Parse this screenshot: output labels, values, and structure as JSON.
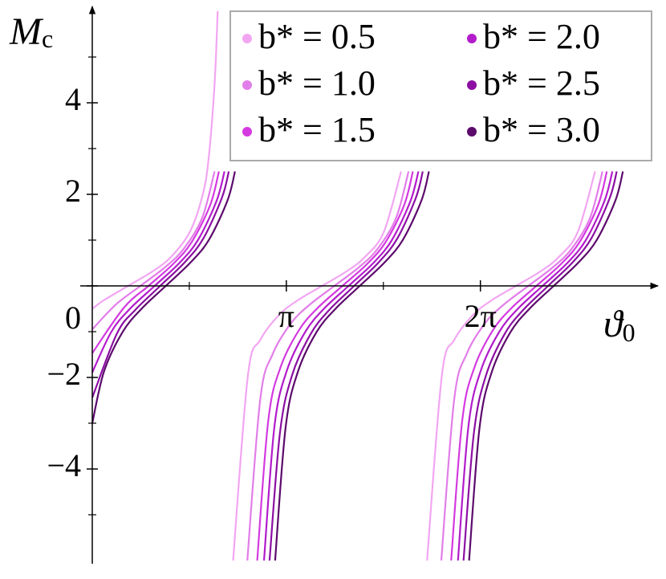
{
  "chart_data": {
    "type": "line",
    "xlabel": {
      "main": "ϑ",
      "sub": "0"
    },
    "ylabel": {
      "main": "M",
      "sub": "c"
    },
    "xlim": [
      0,
      9.08
    ],
    "ylim": [
      -6,
      6
    ],
    "xticks": [
      {
        "value": 3.14159,
        "label": "π"
      },
      {
        "value": 6.28319,
        "label": "2π"
      }
    ],
    "xminor": [
      1.5708,
      4.7124
    ],
    "yticks": [
      {
        "value": -4,
        "label": "−4"
      },
      {
        "value": -2,
        "label": "−2"
      },
      0,
      2,
      4
    ],
    "yminor": [
      -5,
      -3,
      -1,
      1,
      3,
      5
    ],
    "legend": "upper right",
    "series": [
      {
        "name": "b* = 0.5",
        "color": "#f2a6f2",
        "x": [
          0,
          0.18,
          0.58,
          0.98,
          1.28,
          1.58,
          1.78,
          1.88,
          1.98,
          2.03,
          2.15,
          2.28,
          2.52,
          2.72,
          3.02,
          3.32,
          3.72,
          4.12,
          4.42,
          4.72,
          5.0,
          5.29,
          5.42,
          5.66,
          5.86,
          6.16,
          6.46,
          6.86,
          7.26,
          7.56,
          7.86,
          8.14
        ],
        "values": [
          -0.5,
          -0.32,
          0,
          0.32,
          0.64,
          1.18,
          1.95,
          2.74,
          4.41,
          6,
          null,
          -6,
          -1.95,
          -1.18,
          -0.64,
          -0.32,
          0,
          0.32,
          0.64,
          1.18,
          2.5,
          null,
          -6,
          -1.95,
          -1.18,
          -0.64,
          -0.32,
          0,
          0.32,
          0.64,
          1.18,
          2.5
        ]
      },
      {
        "name": "b* = 1.0",
        "color": "#e27ee9",
        "x": [
          0,
          0.38,
          0.78,
          1.18,
          1.48,
          1.78,
          1.98,
          2.35,
          2.51,
          2.72,
          2.92,
          3.22,
          3.52,
          3.92,
          4.32,
          4.62,
          4.92,
          5.12,
          5.49,
          5.65,
          5.86,
          6.06,
          6.36,
          6.66,
          7.06,
          7.46,
          7.76,
          8.06,
          8.26
        ],
        "values": [
          -0.95,
          -0.41,
          0,
          0.41,
          0.81,
          1.49,
          2.5,
          null,
          -6,
          -2.47,
          -1.49,
          -0.81,
          -0.41,
          0,
          0.41,
          0.81,
          1.49,
          2.5,
          null,
          -6,
          -2.47,
          -1.49,
          -0.81,
          -0.41,
          0,
          0.41,
          0.81,
          1.49,
          2.5
        ]
      },
      {
        "name": "b* = 1.5",
        "color": "#d43ae0",
        "x": [
          0,
          0.51,
          0.91,
          1.31,
          1.61,
          1.91,
          2.05,
          2.48,
          2.67,
          2.85,
          3.05,
          3.35,
          3.65,
          4.05,
          4.45,
          4.75,
          5.05,
          5.19,
          5.62,
          5.81,
          5.99,
          6.19,
          6.49,
          6.79,
          7.19,
          7.59,
          7.89,
          8.19,
          8.33
        ],
        "values": [
          -1.47,
          -0.48,
          0,
          0.48,
          0.96,
          1.77,
          2.5,
          null,
          -6,
          -2.93,
          -1.77,
          -0.96,
          -0.48,
          0,
          0.48,
          0.96,
          1.77,
          2.5,
          null,
          -6,
          -2.93,
          -1.77,
          -0.96,
          -0.48,
          0,
          0.48,
          0.96,
          1.77,
          2.5
        ]
      },
      {
        "name": "b* = 2.0",
        "color": "#b21ccb",
        "x": [
          0,
          0.31,
          0.61,
          1.01,
          1.41,
          1.71,
          2.01,
          2.14,
          2.58,
          2.78,
          2.95,
          3.15,
          3.45,
          3.75,
          4.15,
          4.55,
          4.85,
          5.15,
          5.28,
          5.72,
          5.92,
          6.09,
          6.29,
          6.59,
          6.89,
          7.29,
          7.69,
          7.99,
          8.29,
          8.42
        ],
        "values": [
          -1.89,
          -1.0,
          -0.5,
          0,
          0.5,
          1.0,
          1.85,
          2.5,
          null,
          -6,
          -3.06,
          -1.85,
          -1.0,
          -0.5,
          0,
          0.5,
          1.0,
          1.85,
          2.5,
          null,
          -6,
          -3.06,
          -1.85,
          -1.0,
          -0.5,
          0,
          0.5,
          1.0,
          1.85,
          2.5
        ]
      },
      {
        "name": "b* = 2.5",
        "color": "#8c0fa3",
        "x": [
          0,
          0.4,
          0.7,
          1.1,
          1.5,
          1.8,
          2.1,
          2.21,
          2.67,
          2.87,
          3.04,
          3.24,
          3.54,
          3.84,
          4.24,
          4.64,
          4.94,
          5.24,
          5.35,
          5.81,
          6.01,
          6.18,
          6.38,
          6.68,
          6.98,
          7.38,
          7.78,
          8.08,
          8.38,
          8.49
        ],
        "values": [
          -2.44,
          -1.04,
          -0.52,
          0,
          0.52,
          1.04,
          1.93,
          2.5,
          null,
          -6,
          -3.19,
          -1.93,
          -1.04,
          -0.52,
          0,
          0.52,
          1.04,
          1.93,
          2.5,
          null,
          -6,
          -3.19,
          -1.93,
          -1.04,
          -0.52,
          0,
          0.52,
          1.04,
          1.93,
          2.5
        ]
      },
      {
        "name": "b* = 3.0",
        "color": "#5c0a6c",
        "x": [
          0,
          0.19,
          0.49,
          0.79,
          1.19,
          1.59,
          1.89,
          2.19,
          2.31,
          2.76,
          2.96,
          3.13,
          3.33,
          3.63,
          3.93,
          4.33,
          4.73,
          5.03,
          5.33,
          5.45,
          5.9,
          6.1,
          6.27,
          6.47,
          6.77,
          7.07,
          7.47,
          7.87,
          8.17,
          8.47,
          8.59
        ],
        "values": [
          -3.0,
          -1.87,
          -1.01,
          -0.51,
          0,
          0.51,
          1.01,
          1.87,
          2.5,
          null,
          -6,
          -3.09,
          -1.87,
          -1.01,
          -0.51,
          0,
          0.51,
          1.01,
          1.87,
          2.5,
          null,
          -6,
          -3.09,
          -1.87,
          -1.01,
          -0.51,
          0,
          0.51,
          1.01,
          1.87,
          2.5
        ]
      }
    ]
  }
}
